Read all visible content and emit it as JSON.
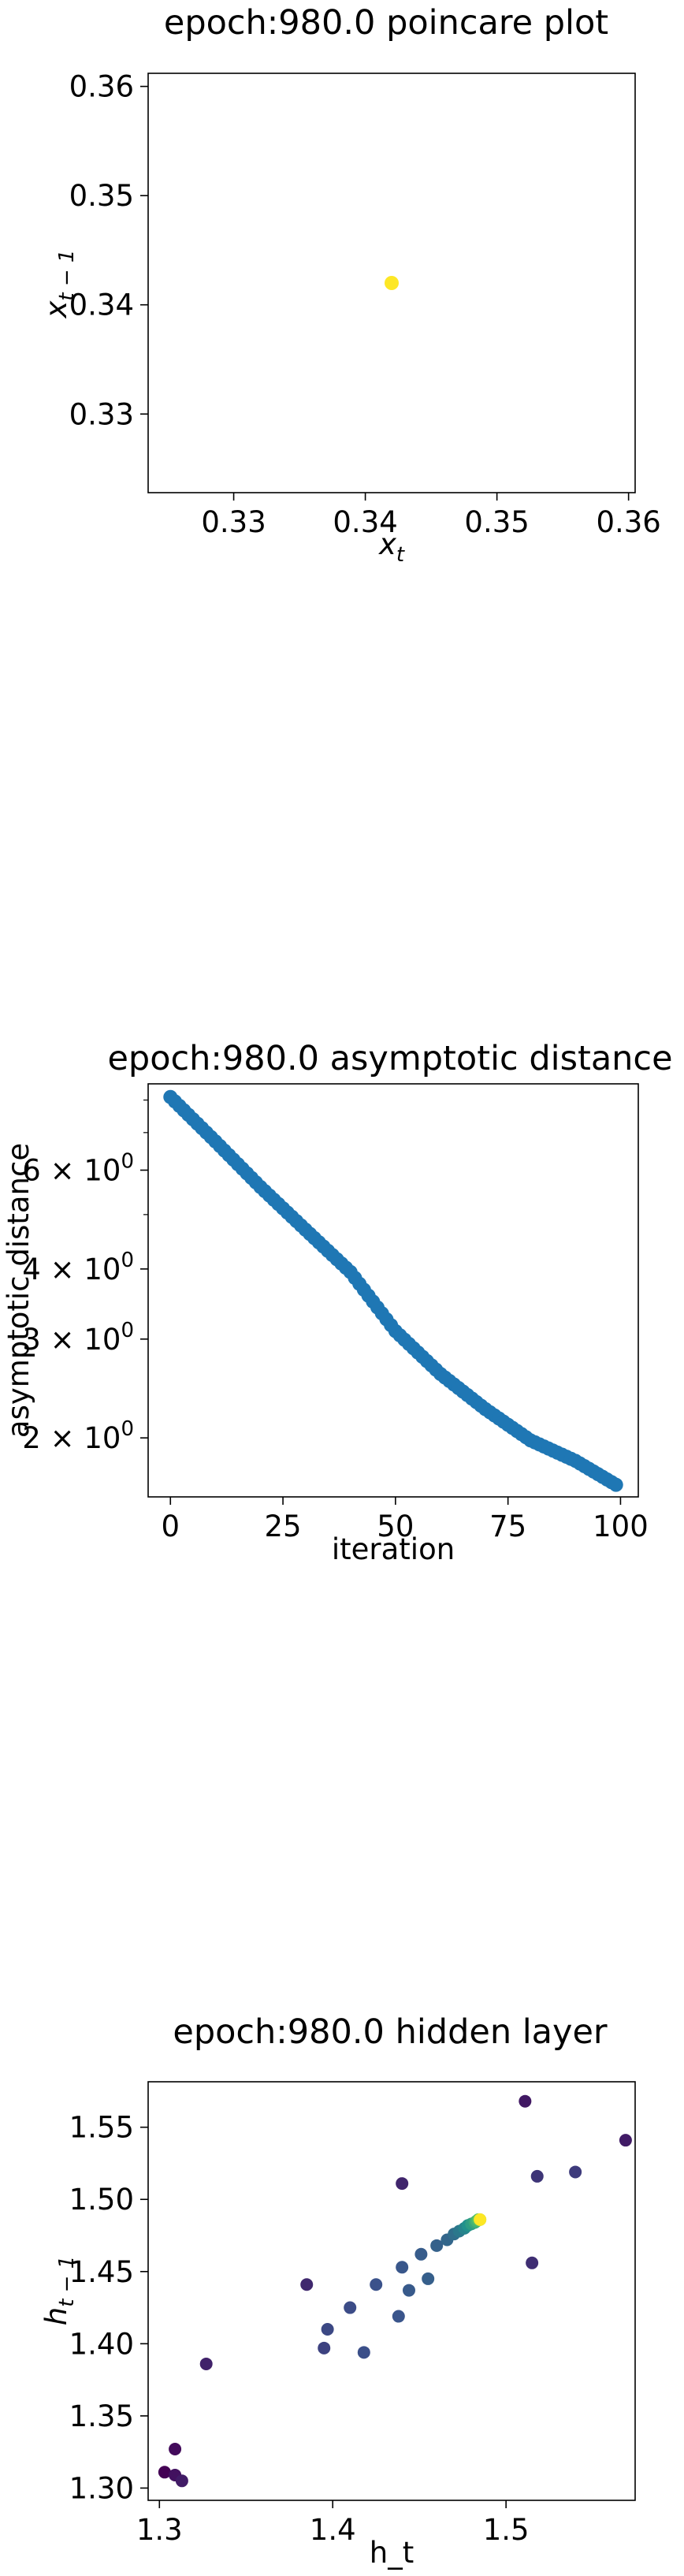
{
  "chart_data": [
    {
      "type": "scatter",
      "title": "epoch:980.0 poincare plot",
      "xlabel": "x_t",
      "ylabel": "x_{t-1}",
      "xlim": [
        0.3235,
        0.3605
      ],
      "ylim": [
        0.3228,
        0.3612
      ],
      "xticks": [
        0.33,
        0.34,
        0.35,
        0.36
      ],
      "xtick_labels": [
        "0.33",
        "0.34",
        "0.35",
        "0.36"
      ],
      "yticks": [
        0.33,
        0.34,
        0.35,
        0.36
      ],
      "ytick_labels": [
        "0.33",
        "0.34",
        "0.35",
        "0.36"
      ],
      "grid": false,
      "points": [
        {
          "x": 0.342,
          "y": 0.342,
          "color": "#fde725"
        }
      ]
    },
    {
      "type": "scatter",
      "title": "epoch:980.0 asymptotic distance",
      "xlabel": "iteration",
      "ylabel": "asymptotic distance",
      "yscale": "log",
      "xlim": [
        -4.95,
        103.95
      ],
      "ylim": [
        1.57,
        8.55
      ],
      "xticks": [
        0,
        25,
        50,
        75,
        100
      ],
      "xtick_labels": [
        "0",
        "25",
        "50",
        "75",
        "100"
      ],
      "yticks": [
        2,
        3,
        4,
        6
      ],
      "ytick_labels": [
        "2 × 10^0",
        "3 × 10^0",
        "4 × 10^0",
        "6 × 10^0"
      ],
      "grid": false,
      "color": "#1f77b4",
      "series": [
        {
          "x_start": 0,
          "x_end": 99,
          "anchors_x": [
            0,
            10,
            20,
            30,
            40,
            50,
            60,
            70,
            80,
            90,
            99
          ],
          "anchors_y": [
            8.1,
            6.75,
            5.6,
            4.7,
            3.95,
            3.1,
            2.6,
            2.25,
            1.98,
            1.82,
            1.65
          ]
        }
      ]
    },
    {
      "type": "scatter",
      "title": "epoch:980.0 hidden layer",
      "xlabel": "h_t",
      "ylabel": "h_{t-1}",
      "xlim": [
        1.2935,
        1.5745
      ],
      "ylim": [
        1.2915,
        1.5815
      ],
      "xticks": [
        1.3,
        1.4,
        1.5
      ],
      "xtick_labels": [
        "1.3",
        "1.4",
        "1.5"
      ],
      "yticks": [
        1.3,
        1.35,
        1.4,
        1.45,
        1.5,
        1.55
      ],
      "ytick_labels": [
        "1.30",
        "1.35",
        "1.40",
        "1.45",
        "1.50",
        "1.55"
      ],
      "grid": false,
      "colormap": "viridis",
      "points": [
        {
          "x": 1.303,
          "y": 1.311,
          "c": 0.0
        },
        {
          "x": 1.309,
          "y": 1.327,
          "c": 0.03
        },
        {
          "x": 1.309,
          "y": 1.309,
          "c": 0.05
        },
        {
          "x": 1.313,
          "y": 1.305,
          "c": 0.08
        },
        {
          "x": 1.327,
          "y": 1.386,
          "c": 0.1
        },
        {
          "x": 1.511,
          "y": 1.568,
          "c": 0.07
        },
        {
          "x": 1.569,
          "y": 1.541,
          "c": 0.08
        },
        {
          "x": 1.44,
          "y": 1.511,
          "c": 0.11
        },
        {
          "x": 1.385,
          "y": 1.441,
          "c": 0.12
        },
        {
          "x": 1.515,
          "y": 1.456,
          "c": 0.14
        },
        {
          "x": 1.518,
          "y": 1.516,
          "c": 0.16
        },
        {
          "x": 1.54,
          "y": 1.519,
          "c": 0.18
        },
        {
          "x": 1.395,
          "y": 1.397,
          "c": 0.2
        },
        {
          "x": 1.397,
          "y": 1.41,
          "c": 0.22
        },
        {
          "x": 1.41,
          "y": 1.425,
          "c": 0.23
        },
        {
          "x": 1.418,
          "y": 1.394,
          "c": 0.24
        },
        {
          "x": 1.425,
          "y": 1.441,
          "c": 0.25
        },
        {
          "x": 1.438,
          "y": 1.419,
          "c": 0.26
        },
        {
          "x": 1.44,
          "y": 1.453,
          "c": 0.27
        },
        {
          "x": 1.444,
          "y": 1.437,
          "c": 0.28
        },
        {
          "x": 1.451,
          "y": 1.462,
          "c": 0.29
        },
        {
          "x": 1.455,
          "y": 1.445,
          "c": 0.3
        },
        {
          "x": 1.46,
          "y": 1.468,
          "c": 0.31
        },
        {
          "x": 1.466,
          "y": 1.472,
          "c": 0.33
        },
        {
          "x": 1.47,
          "y": 1.476,
          "c": 0.36
        },
        {
          "x": 1.473,
          "y": 1.478,
          "c": 0.4
        },
        {
          "x": 1.476,
          "y": 1.48,
          "c": 0.45
        },
        {
          "x": 1.478,
          "y": 1.482,
          "c": 0.5
        },
        {
          "x": 1.48,
          "y": 1.483,
          "c": 0.55
        },
        {
          "x": 1.482,
          "y": 1.484,
          "c": 0.6
        },
        {
          "x": 1.483,
          "y": 1.485,
          "c": 0.65
        },
        {
          "x": 1.484,
          "y": 1.486,
          "c": 0.72
        },
        {
          "x": 1.485,
          "y": 1.486,
          "c": 0.8
        },
        {
          "x": 1.485,
          "y": 1.486,
          "c": 1.0
        }
      ]
    }
  ]
}
